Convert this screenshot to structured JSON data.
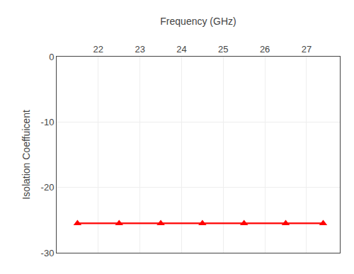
{
  "chart_data": {
    "type": "line",
    "xlabel": "Frequency (GHz)",
    "ylabel": "Isolation Coeffuicent",
    "x": [
      21.5,
      22.5,
      23.5,
      24.5,
      25.5,
      26.5,
      27.4
    ],
    "values": [
      -25.5,
      -25.5,
      -25.5,
      -25.5,
      -25.5,
      -25.5,
      -25.5
    ],
    "color": "#ff0000",
    "marker": "triangle-up",
    "xlim": [
      21.0,
      27.8
    ],
    "ylim": [
      -30,
      0
    ],
    "xticks": [
      22,
      23,
      24,
      25,
      26,
      27
    ],
    "yticks": [
      0,
      -10,
      -20,
      -30
    ],
    "grid": true
  }
}
